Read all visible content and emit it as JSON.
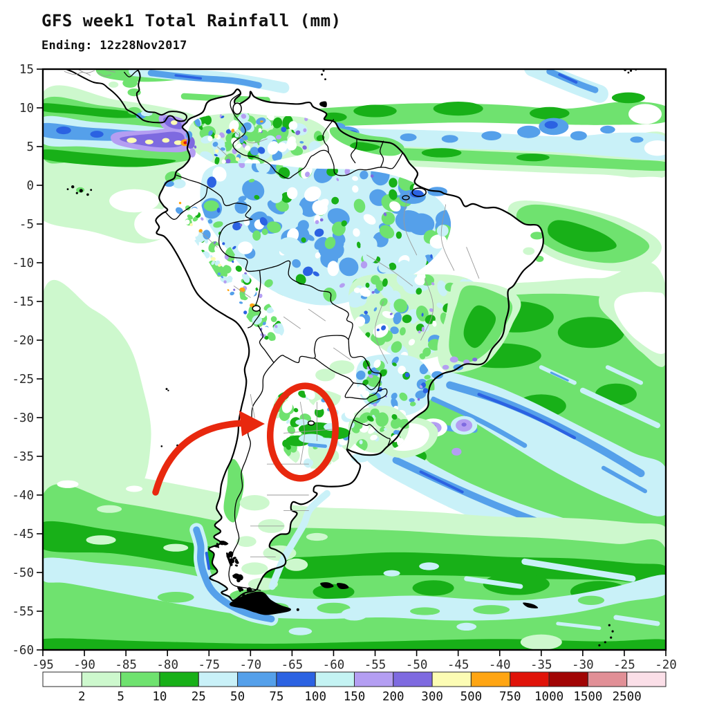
{
  "header": {
    "title": "GFS week1 Total Rainfall (mm)",
    "subtitle": "Ending: 12z28Nov2017"
  },
  "map": {
    "region": "South America",
    "projection": "lat-lon"
  },
  "chart_data": {
    "type": "heatmap",
    "title": "GFS week1 Total Rainfall (mm)",
    "valid_label": "Ending: 12z28Nov2017",
    "variable": "Total Rainfall",
    "unit": "mm",
    "x_axis": {
      "min": -95,
      "max": -20,
      "step": 5,
      "ticks": [
        "-95",
        "-90",
        "-85",
        "-80",
        "-75",
        "-70",
        "-65",
        "-60",
        "-55",
        "-50",
        "-45",
        "-40",
        "-35",
        "-30",
        "-25",
        "-20"
      ]
    },
    "y_axis": {
      "min": -60,
      "max": 15,
      "step": 5,
      "ticks": [
        "15",
        "10",
        "5",
        "0",
        "-5",
        "-10",
        "-15",
        "-20",
        "-25",
        "-30",
        "-35",
        "-40",
        "-45",
        "-50",
        "-55",
        "-60"
      ]
    },
    "legend": {
      "unit": "mm",
      "boundaries": [
        2,
        5,
        10,
        25,
        50,
        75,
        100,
        150,
        200,
        300,
        500,
        750,
        1000,
        1500,
        2500
      ],
      "labels": [
        "2",
        "5",
        "10",
        "25",
        "50",
        "75",
        "100",
        "150",
        "200",
        "300",
        "500",
        "750",
        "1000",
        "1500",
        "2500"
      ],
      "colors": [
        "#ffffff",
        "#cdf8cd",
        "#6fe26f",
        "#18b018",
        "#c9f1f8",
        "#55a0ea",
        "#2b62e2",
        "#c4f3f3",
        "#b49ef2",
        "#7e6ae0",
        "#fcfcb4",
        "#ffa513",
        "#e01309",
        "#a10404",
        "#e18f96",
        "#fbdfe8"
      ]
    },
    "annotation": {
      "type": "ellipse-and-arrow",
      "color": "#e8280e",
      "highlight_center_lon": -63.7,
      "highlight_center_lat": -31.9
    },
    "frame_color": "#000000",
    "tick_label_color": "#2b2b2b"
  }
}
